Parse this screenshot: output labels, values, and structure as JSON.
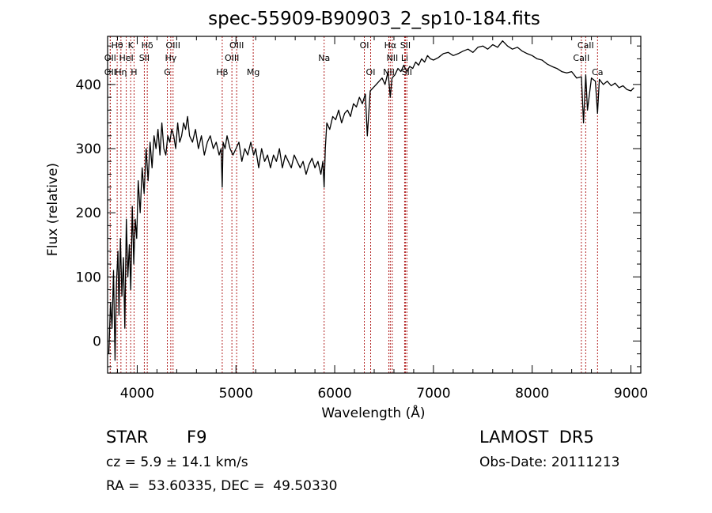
{
  "chart_data": {
    "type": "line",
    "title": "spec-55909-B90903_2_sp10-184.fits",
    "xlabel": "Wavelength (Å)",
    "ylabel": "Flux (relative)",
    "xlim": [
      3700,
      9100
    ],
    "ylim": [
      -50,
      475
    ],
    "xticks": [
      4000,
      5000,
      6000,
      7000,
      8000,
      9000
    ],
    "yticks": [
      0,
      100,
      200,
      300,
      400
    ],
    "minor_x_step": 200,
    "minor_y_step": 20,
    "spectrum_color": "#000000",
    "line_marker_color": "#b22222",
    "series": [
      {
        "x": [
          3712,
          3730,
          3745,
          3760,
          3775,
          3790,
          3805,
          3815,
          3830,
          3845,
          3860,
          3875,
          3890,
          3905,
          3920,
          3935,
          3950,
          3965,
          3980,
          3995,
          4010,
          4030,
          4050,
          4070,
          4090,
          4110,
          4130,
          4150,
          4170,
          4190,
          4210,
          4230,
          4250,
          4270,
          4290,
          4310,
          4330,
          4350,
          4370,
          4390,
          4410,
          4430,
          4450,
          4470,
          4490,
          4510,
          4530,
          4560,
          4590,
          4620,
          4650,
          4680,
          4710,
          4740,
          4770,
          4800,
          4830,
          4850,
          4861,
          4870,
          4890,
          4910,
          4940,
          4970,
          5000,
          5030,
          5060,
          5090,
          5120,
          5150,
          5180,
          5200,
          5230,
          5260,
          5290,
          5320,
          5350,
          5380,
          5410,
          5440,
          5470,
          5500,
          5530,
          5560,
          5590,
          5620,
          5650,
          5680,
          5710,
          5740,
          5770,
          5800,
          5830,
          5860,
          5880,
          5893,
          5905,
          5920,
          5950,
          5980,
          6010,
          6040,
          6070,
          6100,
          6130,
          6160,
          6190,
          6220,
          6250,
          6280,
          6310,
          6330,
          6360,
          6390,
          6420,
          6450,
          6480,
          6510,
          6540,
          6563,
          6580,
          6610,
          6640,
          6670,
          6700,
          6730,
          6760,
          6790,
          6820,
          6850,
          6880,
          6910,
          6940,
          6970,
          7000,
          7050,
          7100,
          7150,
          7200,
          7250,
          7300,
          7350,
          7400,
          7450,
          7500,
          7550,
          7600,
          7650,
          7700,
          7750,
          7800,
          7850,
          7900,
          7950,
          8000,
          8050,
          8100,
          8150,
          8200,
          8250,
          8300,
          8350,
          8400,
          8450,
          8498,
          8520,
          8542,
          8560,
          8600,
          8640,
          8662,
          8680,
          8720,
          8760,
          8800,
          8840,
          8880,
          8920,
          8960,
          9000,
          9030
        ],
        "values": [
          -20,
          60,
          20,
          110,
          -30,
          90,
          140,
          40,
          160,
          70,
          130,
          20,
          190,
          100,
          150,
          80,
          210,
          120,
          190,
          160,
          250,
          200,
          270,
          230,
          300,
          250,
          310,
          270,
          320,
          300,
          330,
          290,
          340,
          300,
          290,
          320,
          310,
          330,
          320,
          300,
          340,
          310,
          320,
          340,
          330,
          350,
          320,
          310,
          330,
          300,
          320,
          290,
          310,
          320,
          300,
          310,
          290,
          300,
          240,
          310,
          300,
          320,
          300,
          290,
          300,
          310,
          280,
          300,
          290,
          310,
          290,
          300,
          270,
          300,
          280,
          290,
          270,
          290,
          280,
          300,
          270,
          290,
          280,
          270,
          290,
          280,
          270,
          280,
          260,
          275,
          285,
          270,
          280,
          260,
          280,
          240,
          300,
          340,
          330,
          350,
          345,
          360,
          340,
          355,
          360,
          350,
          370,
          365,
          380,
          370,
          385,
          320,
          390,
          395,
          400,
          405,
          410,
          400,
          420,
          380,
          410,
          415,
          425,
          420,
          430,
          420,
          428,
          425,
          435,
          430,
          440,
          435,
          445,
          440,
          438,
          442,
          448,
          450,
          445,
          448,
          452,
          455,
          450,
          458,
          460,
          455,
          462,
          458,
          468,
          460,
          455,
          458,
          452,
          448,
          445,
          440,
          438,
          432,
          428,
          425,
          420,
          418,
          420,
          410,
          412,
          340,
          415,
          360,
          410,
          405,
          355,
          408,
          400,
          405,
          398,
          402,
          395,
          398,
          392,
          390,
          395
        ]
      }
    ],
    "spectral_lines": [
      {
        "label": "Hθ",
        "x": 3797,
        "row": 1
      },
      {
        "label": "K",
        "x": 3934,
        "row": 1
      },
      {
        "label": "Hδ",
        "x": 4102,
        "row": 1
      },
      {
        "label": "OIII",
        "x": 4363,
        "row": 1
      },
      {
        "label": "OIII",
        "x": 5007,
        "row": 1
      },
      {
        "label": "OI",
        "x": 6300,
        "row": 1
      },
      {
        "label": "Hα",
        "x": 6563,
        "row": 1
      },
      {
        "label": "SII",
        "x": 6716,
        "row": 1
      },
      {
        "label": "CaII",
        "x": 8542,
        "row": 1
      },
      {
        "label": "OII",
        "x": 3727,
        "row": 2
      },
      {
        "label": "HeI",
        "x": 3889,
        "row": 2
      },
      {
        "label": "SII",
        "x": 4072,
        "row": 2
      },
      {
        "label": "Hγ",
        "x": 4340,
        "row": 2
      },
      {
        "label": "OIII",
        "x": 4959,
        "row": 2
      },
      {
        "label": "Na",
        "x": 5893,
        "row": 2
      },
      {
        "label": "NII",
        "x": 6583,
        "row": 2
      },
      {
        "label": "Li",
        "x": 6708,
        "row": 2
      },
      {
        "label": "CaII",
        "x": 8498,
        "row": 2
      },
      {
        "label": "OII",
        "x": 3727,
        "row": 3
      },
      {
        "label": "Hη",
        "x": 3835,
        "row": 3
      },
      {
        "label": "H",
        "x": 3968,
        "row": 3
      },
      {
        "label": "G",
        "x": 4305,
        "row": 3
      },
      {
        "label": "Hβ",
        "x": 4861,
        "row": 3
      },
      {
        "label": "Mg",
        "x": 5175,
        "row": 3
      },
      {
        "label": "OI",
        "x": 6364,
        "row": 3
      },
      {
        "label": "NII",
        "x": 6548,
        "row": 3
      },
      {
        "label": "SII",
        "x": 6731,
        "row": 3
      },
      {
        "label": "Ca",
        "x": 8662,
        "row": 3
      }
    ]
  },
  "info": {
    "class_label": "STAR",
    "subclass": "F9",
    "survey": "LAMOST  DR5",
    "redshift_text": "cz = 5.9 ± 14.1 km/s",
    "obs_date_text": "Obs-Date: 20111213",
    "coords_text": "RA =  53.60335, DEC =  49.50330"
  }
}
